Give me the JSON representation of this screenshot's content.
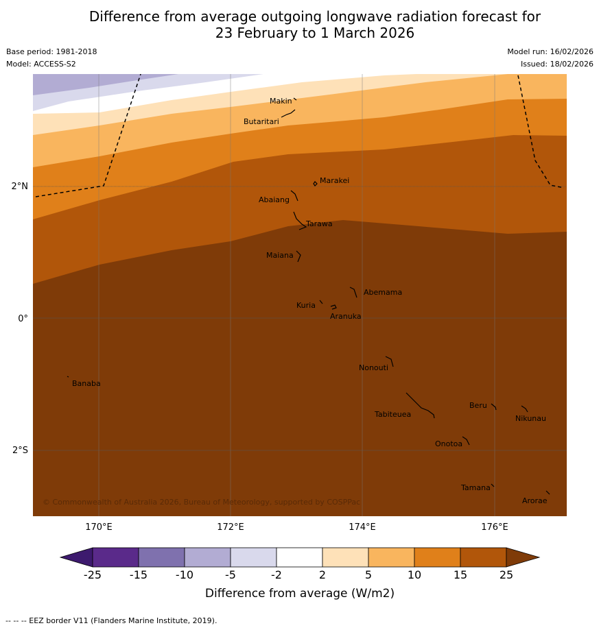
{
  "title_line1": "Difference from average outgoing longwave radiation forecast for",
  "title_line2": "23 February to 1 March 2026",
  "meta": {
    "base_period": "Base period: 1981-2018",
    "model": "Model: ACCESS-S2",
    "model_run": "Model run: 16/02/2026",
    "issued": "Issued: 18/02/2026"
  },
  "axes": {
    "lat_labels": [
      "2°N",
      "0°",
      "2°S"
    ],
    "lon_labels": [
      "170°E",
      "172°E",
      "174°E",
      "176°E"
    ]
  },
  "places": [
    {
      "name": "Makin"
    },
    {
      "name": "Butaritari"
    },
    {
      "name": "Marakei"
    },
    {
      "name": "Abaiang"
    },
    {
      "name": "Tarawa"
    },
    {
      "name": "Maiana"
    },
    {
      "name": "Abemama"
    },
    {
      "name": "Kuria"
    },
    {
      "name": "Aranuka"
    },
    {
      "name": "Nonouti"
    },
    {
      "name": "Banaba"
    },
    {
      "name": "Beru"
    },
    {
      "name": "Nikunau"
    },
    {
      "name": "Tabiteuea"
    },
    {
      "name": "Onotoa"
    },
    {
      "name": "Tamana"
    },
    {
      "name": "Arorae"
    }
  ],
  "copyright": "© Commonwealth of Australia 2026, Bureau of Meteorology, supported by COSPPac",
  "colorbar": {
    "ticks": [
      "-25",
      "-15",
      "-10",
      "-5",
      "-2",
      "2",
      "5",
      "10",
      "15",
      "25"
    ],
    "colors": [
      "#3d1a6e",
      "#5a2a8a",
      "#7f71ae",
      "#b2acd3",
      "#d9d9ec",
      "#ffffff",
      "#fee1b8",
      "#f9b55e",
      "#e0801a",
      "#b1560a",
      "#7f3b08"
    ],
    "label": "Difference from average (W/m2)"
  },
  "footer": "--  --  -- EEZ border V11 (Flanders Marine Institute, 2019)."
}
